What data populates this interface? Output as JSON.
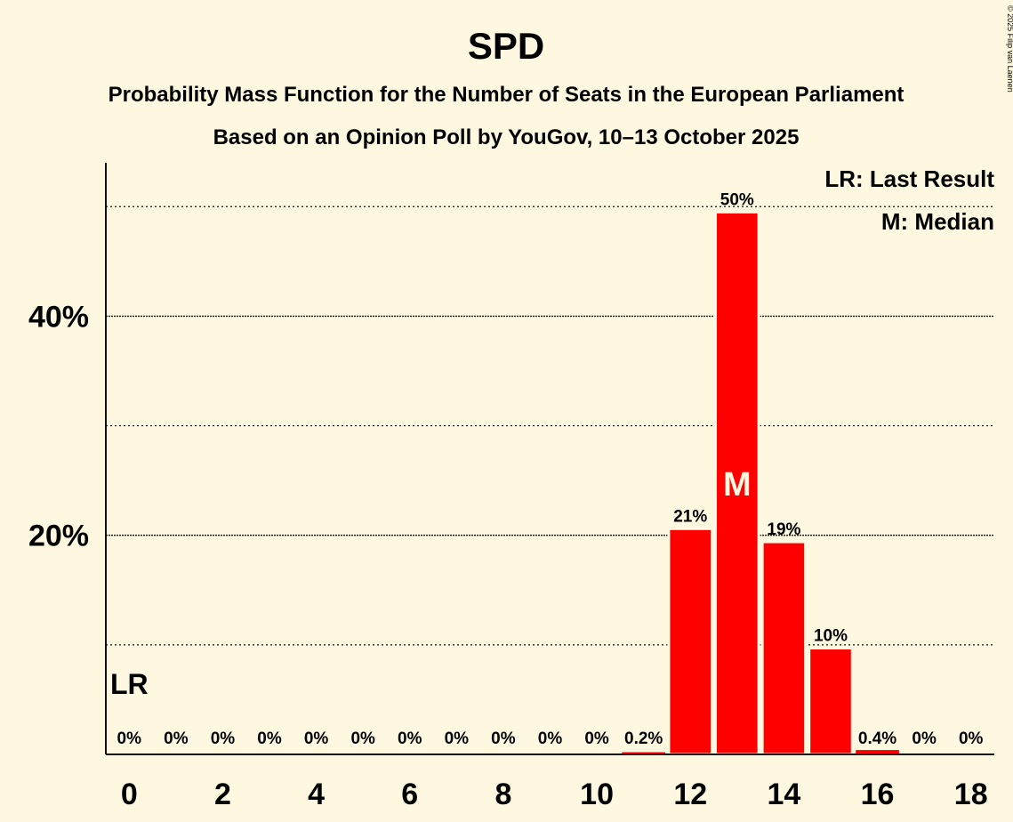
{
  "copyright": "© 2025 Filip van Laenen",
  "chart_data": {
    "type": "bar",
    "title": "SPD",
    "subtitle": "Probability Mass Function for the Number of Seats in the European Parliament",
    "subtitle2": "Based on an Opinion Poll by YouGov, 10–13 October 2025",
    "xlabel": "",
    "ylabel": "",
    "ylim": [
      0,
      54
    ],
    "yticks": [
      20,
      40
    ],
    "ytick_labels": [
      "20%",
      "40%"
    ],
    "minor_gridlines": [
      10,
      30,
      50
    ],
    "categories": [
      0,
      1,
      2,
      3,
      4,
      5,
      6,
      7,
      8,
      9,
      10,
      11,
      12,
      13,
      14,
      15,
      16,
      17,
      18
    ],
    "xtick_labels": [
      "0",
      "",
      "2",
      "",
      "4",
      "",
      "6",
      "",
      "8",
      "",
      "10",
      "",
      "12",
      "",
      "14",
      "",
      "16",
      "",
      "18"
    ],
    "values": [
      0,
      0,
      0,
      0,
      0,
      0,
      0,
      0,
      0,
      0,
      0,
      0.2,
      20.6,
      49.5,
      19.4,
      9.7,
      0.4,
      0,
      0
    ],
    "labels": [
      "0%",
      "0%",
      "0%",
      "0%",
      "0%",
      "0%",
      "0%",
      "0%",
      "0%",
      "0%",
      "0%",
      "0.2%",
      "21%",
      "50%",
      "19%",
      "10%",
      "0.4%",
      "0%",
      "0%"
    ],
    "bar_color": "#FF0000",
    "last_result": {
      "seat": 0,
      "label": "LR"
    },
    "median": {
      "seat": 13,
      "label": "M"
    },
    "legend": [
      "LR: Last Result",
      "M: Median"
    ],
    "legend_position": "top-right"
  }
}
